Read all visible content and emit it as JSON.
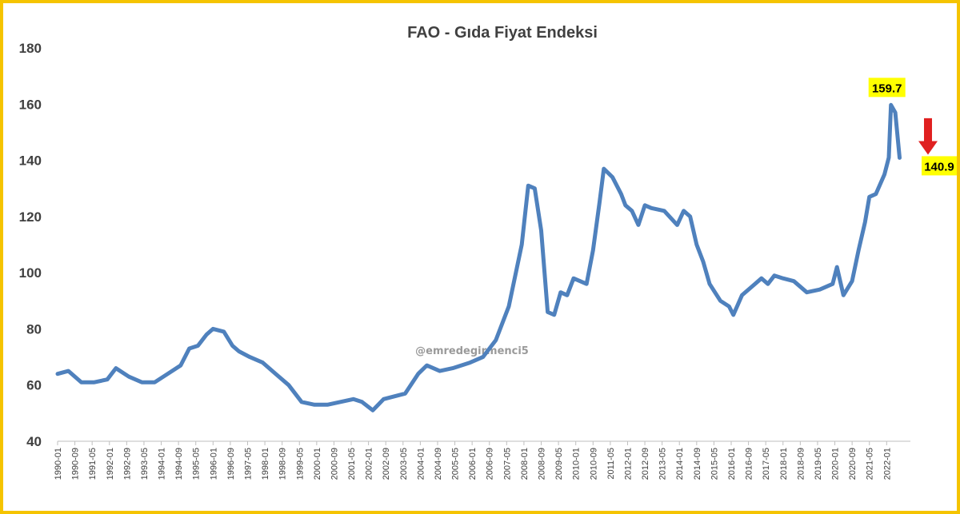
{
  "colors": {
    "line": "#4f81bd",
    "border": "#f5c400",
    "highlight": "#ffff00",
    "arrow": "#e02020",
    "axis": "#bfbfbf"
  },
  "chart_data": {
    "type": "line",
    "title": "FAO - Gıda Fiyat Endeksi",
    "xlabel": "",
    "ylabel": "",
    "ylim": [
      40,
      180
    ],
    "yticks": [
      40,
      60,
      80,
      100,
      120,
      140,
      160,
      180
    ],
    "xticks": [
      "1990-01",
      "1990-09",
      "1991-05",
      "1992-01",
      "1992-09",
      "1993-05",
      "1994-01",
      "1994-09",
      "1995-05",
      "1996-01",
      "1996-09",
      "1997-05",
      "1998-01",
      "1998-09",
      "1999-05",
      "2000-01",
      "2000-09",
      "2001-05",
      "2002-01",
      "2002-09",
      "2003-05",
      "2004-01",
      "2004-09",
      "2005-05",
      "2006-01",
      "2006-09",
      "2007-05",
      "2008-01",
      "2008-09",
      "2009-05",
      "2010-01",
      "2010-09",
      "2011-05",
      "2012-01",
      "2012-09",
      "2013-05",
      "2014-01",
      "2014-09",
      "2015-05",
      "2016-01",
      "2016-09",
      "2017-05",
      "2018-01",
      "2018-09",
      "2019-05",
      "2020-01",
      "2020-09",
      "2021-05",
      "2022-01"
    ],
    "grid": false,
    "legend": "none",
    "series": [
      {
        "points": [
          [
            "1990-01",
            64
          ],
          [
            "1990-06",
            65
          ],
          [
            "1990-12",
            61
          ],
          [
            "1991-06",
            61
          ],
          [
            "1991-12",
            62
          ],
          [
            "1992-04",
            66
          ],
          [
            "1992-10",
            63
          ],
          [
            "1993-04",
            61
          ],
          [
            "1993-10",
            61
          ],
          [
            "1994-04",
            64
          ],
          [
            "1994-10",
            67
          ],
          [
            "1995-02",
            73
          ],
          [
            "1995-06",
            74
          ],
          [
            "1995-10",
            78
          ],
          [
            "1996-01",
            80
          ],
          [
            "1996-06",
            79
          ],
          [
            "1996-10",
            74
          ],
          [
            "1997-01",
            72
          ],
          [
            "1997-06",
            70
          ],
          [
            "1997-12",
            68
          ],
          [
            "1998-06",
            64
          ],
          [
            "1998-12",
            60
          ],
          [
            "1999-06",
            54
          ],
          [
            "1999-12",
            53
          ],
          [
            "2000-06",
            53
          ],
          [
            "2000-12",
            54
          ],
          [
            "2001-06",
            55
          ],
          [
            "2001-10",
            54
          ],
          [
            "2002-03",
            51
          ],
          [
            "2002-08",
            55
          ],
          [
            "2003-01",
            56
          ],
          [
            "2003-06",
            57
          ],
          [
            "2003-12",
            64
          ],
          [
            "2004-04",
            67
          ],
          [
            "2004-10",
            65
          ],
          [
            "2005-04",
            66
          ],
          [
            "2005-12",
            68
          ],
          [
            "2006-06",
            70
          ],
          [
            "2006-12",
            76
          ],
          [
            "2007-06",
            88
          ],
          [
            "2007-12",
            110
          ],
          [
            "2008-03",
            131
          ],
          [
            "2008-06",
            130
          ],
          [
            "2008-09",
            115
          ],
          [
            "2008-12",
            86
          ],
          [
            "2009-03",
            85
          ],
          [
            "2009-06",
            93
          ],
          [
            "2009-09",
            92
          ],
          [
            "2009-12",
            98
          ],
          [
            "2010-03",
            97
          ],
          [
            "2010-06",
            96
          ],
          [
            "2010-09",
            108
          ],
          [
            "2010-12",
            125
          ],
          [
            "2011-02",
            137
          ],
          [
            "2011-06",
            134
          ],
          [
            "2011-10",
            128
          ],
          [
            "2011-12",
            124
          ],
          [
            "2012-03",
            122
          ],
          [
            "2012-06",
            117
          ],
          [
            "2012-09",
            124
          ],
          [
            "2012-12",
            123
          ],
          [
            "2013-06",
            122
          ],
          [
            "2013-12",
            117
          ],
          [
            "2014-03",
            122
          ],
          [
            "2014-06",
            120
          ],
          [
            "2014-09",
            110
          ],
          [
            "2014-12",
            104
          ],
          [
            "2015-03",
            96
          ],
          [
            "2015-08",
            90
          ],
          [
            "2015-12",
            88
          ],
          [
            "2016-02",
            85
          ],
          [
            "2016-06",
            92
          ],
          [
            "2016-12",
            96
          ],
          [
            "2017-03",
            98
          ],
          [
            "2017-06",
            96
          ],
          [
            "2017-09",
            99
          ],
          [
            "2018-01",
            98
          ],
          [
            "2018-06",
            97
          ],
          [
            "2018-12",
            93
          ],
          [
            "2019-06",
            94
          ],
          [
            "2019-12",
            96
          ],
          [
            "2020-02",
            102
          ],
          [
            "2020-05",
            92
          ],
          [
            "2020-09",
            97
          ],
          [
            "2020-12",
            108
          ],
          [
            "2021-03",
            118
          ],
          [
            "2021-05",
            127
          ],
          [
            "2021-08",
            128
          ],
          [
            "2021-12",
            135
          ],
          [
            "2022-02",
            141
          ],
          [
            "2022-03",
            159.7
          ],
          [
            "2022-05",
            157
          ],
          [
            "2022-07",
            140.9
          ]
        ]
      }
    ],
    "annotations": [
      {
        "label": "159.7",
        "at": "2022-03",
        "value": 159.7
      },
      {
        "label": "140.9",
        "at": "2022-07",
        "value": 140.9
      }
    ]
  },
  "watermark": "@emredegirmenci5"
}
